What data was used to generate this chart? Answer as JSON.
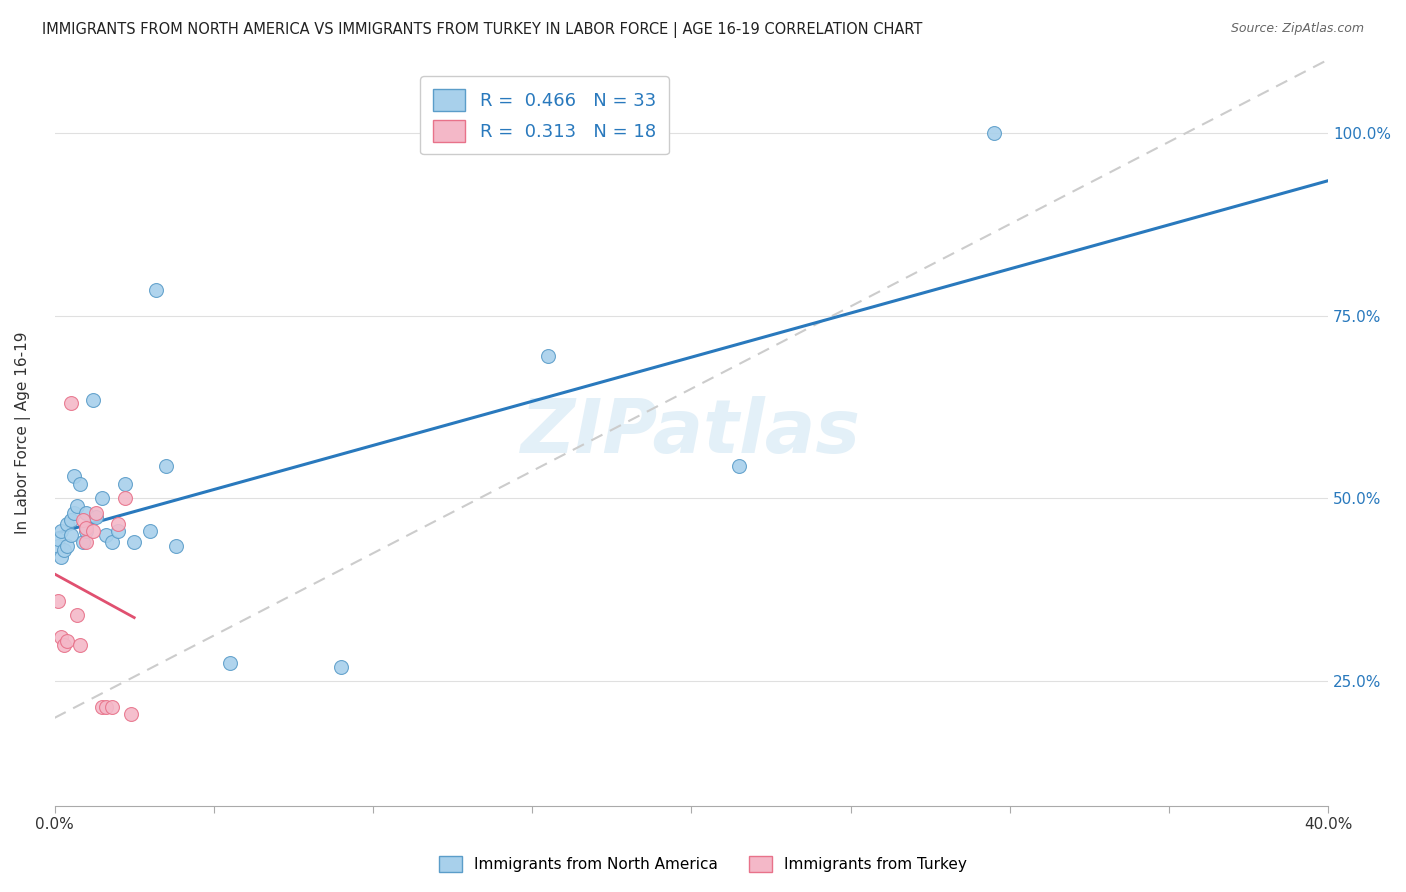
{
  "title": "IMMIGRANTS FROM NORTH AMERICA VS IMMIGRANTS FROM TURKEY IN LABOR FORCE | AGE 16-19 CORRELATION CHART",
  "source": "Source: ZipAtlas.com",
  "ylabel": "In Labor Force | Age 16-19",
  "right_yticks": [
    "100.0%",
    "75.0%",
    "50.0%",
    "25.0%"
  ],
  "right_ytick_vals": [
    1.0,
    0.75,
    0.5,
    0.25
  ],
  "blue_label": "Immigrants from North America",
  "pink_label": "Immigrants from Turkey",
  "R_blue": 0.466,
  "N_blue": 33,
  "R_pink": 0.313,
  "N_pink": 18,
  "blue_color": "#a8d0eb",
  "pink_color": "#f4b8c8",
  "blue_edge_color": "#5b9dc9",
  "pink_edge_color": "#e8728a",
  "blue_line_color": "#2979bd",
  "pink_line_color": "#e05070",
  "ref_line_color": "#cccccc",
  "watermark": "ZIPatlas",
  "blue_scatter_x": [
    0.001,
    0.001,
    0.002,
    0.002,
    0.003,
    0.004,
    0.004,
    0.005,
    0.005,
    0.006,
    0.006,
    0.007,
    0.008,
    0.009,
    0.01,
    0.01,
    0.012,
    0.013,
    0.015,
    0.016,
    0.018,
    0.02,
    0.022,
    0.025,
    0.03,
    0.032,
    0.035,
    0.038,
    0.055,
    0.09,
    0.155,
    0.215,
    0.295
  ],
  "blue_scatter_y": [
    0.435,
    0.445,
    0.42,
    0.455,
    0.43,
    0.435,
    0.465,
    0.45,
    0.47,
    0.48,
    0.53,
    0.49,
    0.52,
    0.44,
    0.455,
    0.48,
    0.635,
    0.475,
    0.5,
    0.45,
    0.44,
    0.455,
    0.52,
    0.44,
    0.455,
    0.785,
    0.545,
    0.435,
    0.275,
    0.27,
    0.695,
    0.545,
    1.0
  ],
  "pink_scatter_x": [
    0.001,
    0.002,
    0.003,
    0.004,
    0.005,
    0.007,
    0.008,
    0.009,
    0.01,
    0.01,
    0.012,
    0.013,
    0.015,
    0.016,
    0.018,
    0.02,
    0.022,
    0.024
  ],
  "pink_scatter_y": [
    0.36,
    0.31,
    0.3,
    0.305,
    0.63,
    0.34,
    0.3,
    0.47,
    0.44,
    0.46,
    0.455,
    0.48,
    0.215,
    0.215,
    0.215,
    0.465,
    0.5,
    0.205
  ],
  "xlim": [
    0.0,
    0.4
  ],
  "ylim": [
    0.08,
    1.1
  ],
  "xtick_positions": [
    0.0,
    0.05,
    0.1,
    0.15,
    0.2,
    0.25,
    0.3,
    0.35,
    0.4
  ],
  "ytick_positions": [
    0.25,
    0.5,
    0.75,
    1.0
  ],
  "grid_color": "#e0e0e0",
  "bg_color": "#ffffff"
}
